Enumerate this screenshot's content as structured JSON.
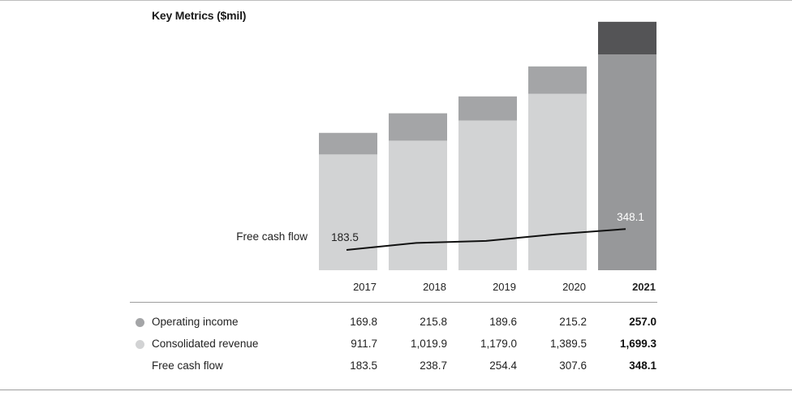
{
  "header": {
    "title": "Key Metrics ($mil)"
  },
  "colors": {
    "revenue": "#d2d3d4",
    "operating_income": "#a4a5a7",
    "revenue_latest": "#97989a",
    "operating_income_latest": "#545456",
    "line": "#111111"
  },
  "chart_data": {
    "type": "bar",
    "categories": [
      "2017",
      "2018",
      "2019",
      "2020",
      "2021"
    ],
    "highlight_category": "2021",
    "series": [
      {
        "name": "Operating income",
        "values": [
          169.8,
          215.8,
          189.6,
          215.2,
          257.0
        ]
      },
      {
        "name": "Consolidated revenue",
        "values": [
          911.7,
          1019.9,
          1179.0,
          1389.5,
          1699.3
        ]
      },
      {
        "name": "Free cash flow",
        "type": "line",
        "values": [
          183.5,
          238.7,
          254.4,
          307.6,
          348.1
        ]
      }
    ],
    "stacked": true,
    "line_label": "Free cash flow",
    "point_labels": [
      {
        "category": "2017",
        "text": "183.5"
      },
      {
        "category": "2021",
        "text": "348.1"
      }
    ]
  },
  "table": {
    "rows": [
      {
        "label": "Operating income",
        "dot": "#a4a5a7",
        "values": [
          "169.8",
          "215.8",
          "189.6",
          "215.2",
          "257.0"
        ]
      },
      {
        "label": "Consolidated revenue",
        "dot": "#d2d3d4",
        "values": [
          "911.7",
          "1,019.9",
          "1,179.0",
          "1,389.5",
          "1,699.3"
        ]
      },
      {
        "label": "Free cash flow",
        "dot": "",
        "values": [
          "183.5",
          "238.7",
          "254.4",
          "307.6",
          "348.1"
        ]
      }
    ]
  }
}
